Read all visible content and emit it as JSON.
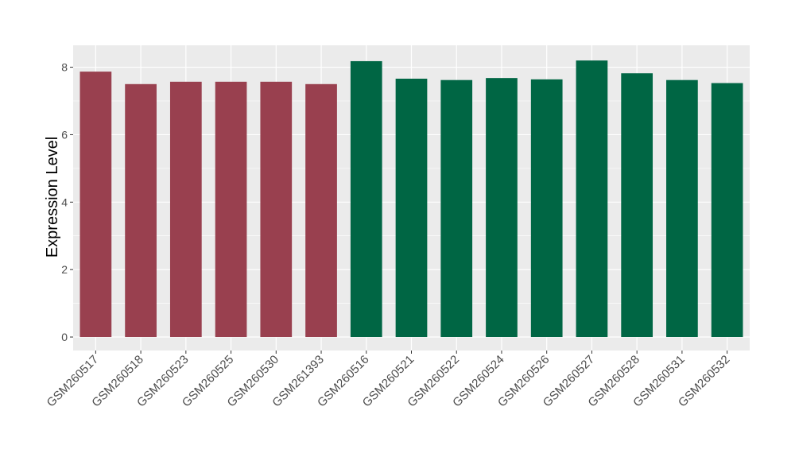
{
  "chart_data": {
    "type": "bar",
    "title": "",
    "xlabel": "",
    "ylabel": "Expression Level",
    "ylim": [
      -0.4,
      8.65
    ],
    "yticks": [
      0,
      2,
      4,
      6,
      8
    ],
    "grid": true,
    "legend": "none",
    "categories": [
      "GSM260517",
      "GSM260518",
      "GSM260523",
      "GSM260525",
      "GSM260530",
      "GSM261393",
      "GSM260516",
      "GSM260521",
      "GSM260522",
      "GSM260524",
      "GSM260526",
      "GSM260527",
      "GSM260528",
      "GSM260531",
      "GSM260532"
    ],
    "values": [
      7.87,
      7.5,
      7.57,
      7.57,
      7.57,
      7.5,
      8.18,
      7.66,
      7.62,
      7.68,
      7.64,
      8.2,
      7.82,
      7.62,
      7.53
    ],
    "bar_colors": [
      "#99404f",
      "#99404f",
      "#99404f",
      "#99404f",
      "#99404f",
      "#99404f",
      "#006644",
      "#006644",
      "#006644",
      "#006644",
      "#006644",
      "#006644",
      "#006644",
      "#006644",
      "#006644"
    ],
    "panel_background": "#ebebeb",
    "grid_color": "#ffffff"
  }
}
